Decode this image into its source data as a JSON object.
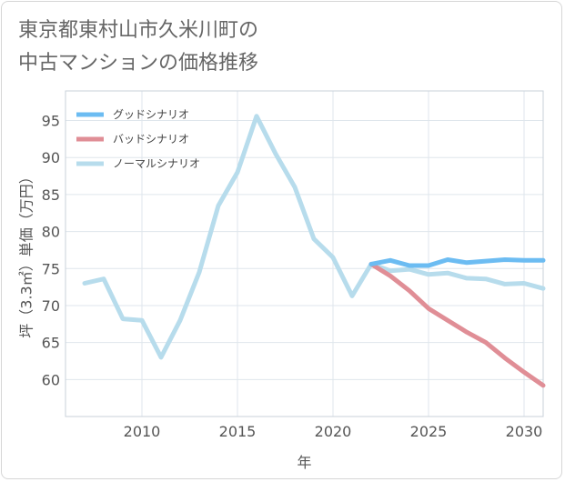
{
  "title_lines": [
    "東京都東村山市久米川町の",
    "中古マンションの価格推移"
  ],
  "chart_data": {
    "type": "line",
    "title": "東京都東村山市久米川町の中古マンションの価格推移",
    "xlabel": "年",
    "ylabel": "坪（3.3㎡）単価（万円）",
    "xlim": [
      2006,
      2031
    ],
    "ylim": [
      55,
      99
    ],
    "xticks": [
      2010,
      2015,
      2020,
      2025,
      2030
    ],
    "yticks": [
      60,
      65,
      70,
      75,
      80,
      85,
      90,
      95
    ],
    "legend_position": "top-left",
    "series": [
      {
        "name": "グッドシナリオ",
        "color": "#6cbcf2",
        "x": [
          2022,
          2023,
          2024,
          2025,
          2026,
          2027,
          2028,
          2029,
          2030,
          2031
        ],
        "values": [
          75.6,
          76.1,
          75.4,
          75.4,
          76.2,
          75.8,
          76.0,
          76.2,
          76.1,
          76.1
        ]
      },
      {
        "name": "バッドシナリオ",
        "color": "#e08e96",
        "x": [
          2022,
          2023,
          2024,
          2025,
          2026,
          2027,
          2028,
          2029,
          2030,
          2031
        ],
        "values": [
          75.6,
          74.0,
          72.0,
          69.6,
          68.0,
          66.4,
          65.0,
          62.9,
          61.0,
          59.2
        ]
      },
      {
        "name": "ノーマルシナリオ",
        "color": "#b7dcec",
        "x": [
          2007,
          2008,
          2009,
          2010,
          2011,
          2012,
          2013,
          2014,
          2015,
          2016,
          2017,
          2018,
          2019,
          2020,
          2021,
          2022,
          2023,
          2024,
          2025,
          2026,
          2027,
          2028,
          2029,
          2030,
          2031
        ],
        "values": [
          73.0,
          73.6,
          68.2,
          68.0,
          63.0,
          68.0,
          74.5,
          83.5,
          88.0,
          95.6,
          90.5,
          86.0,
          79.0,
          76.5,
          71.3,
          75.6,
          74.7,
          74.9,
          74.2,
          74.4,
          73.7,
          73.6,
          72.9,
          73.0,
          72.3
        ]
      }
    ]
  }
}
